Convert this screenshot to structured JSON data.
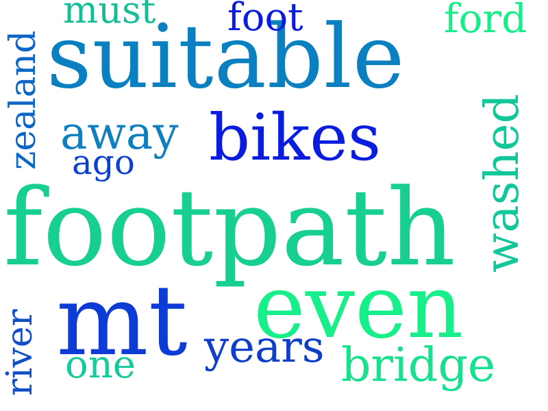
{
  "words": [
    {
      "key": "footpath",
      "text": "footpath",
      "color": "#17cf8f"
    },
    {
      "key": "suitable",
      "text": "suitable",
      "color": "#0a80c0"
    },
    {
      "key": "even",
      "text": "even",
      "color": "#17f08a"
    },
    {
      "key": "mt",
      "text": "mt",
      "color": "#0c3bd6"
    },
    {
      "key": "bikes",
      "text": "bikes",
      "color": "#0a1ddf"
    },
    {
      "key": "washed",
      "text": "washed",
      "color": "#12c79a"
    },
    {
      "key": "away",
      "text": "away",
      "color": "#107fbf"
    },
    {
      "key": "bridge",
      "text": "bridge",
      "color": "#17e08f"
    },
    {
      "key": "years",
      "text": "years",
      "color": "#0f3fc9"
    },
    {
      "key": "zealand",
      "text": "zealand",
      "color": "#0c66c7"
    },
    {
      "key": "river",
      "text": "river",
      "color": "#0f4ec8"
    },
    {
      "key": "one",
      "text": "one",
      "color": "#17c99c"
    },
    {
      "key": "ford",
      "text": "ford",
      "color": "#17ee88"
    },
    {
      "key": "foot",
      "text": "foot",
      "color": "#0a1ddf"
    },
    {
      "key": "must",
      "text": "must",
      "color": "#14bf98"
    },
    {
      "key": "ago",
      "text": "ago",
      "color": "#0c40cf"
    }
  ]
}
